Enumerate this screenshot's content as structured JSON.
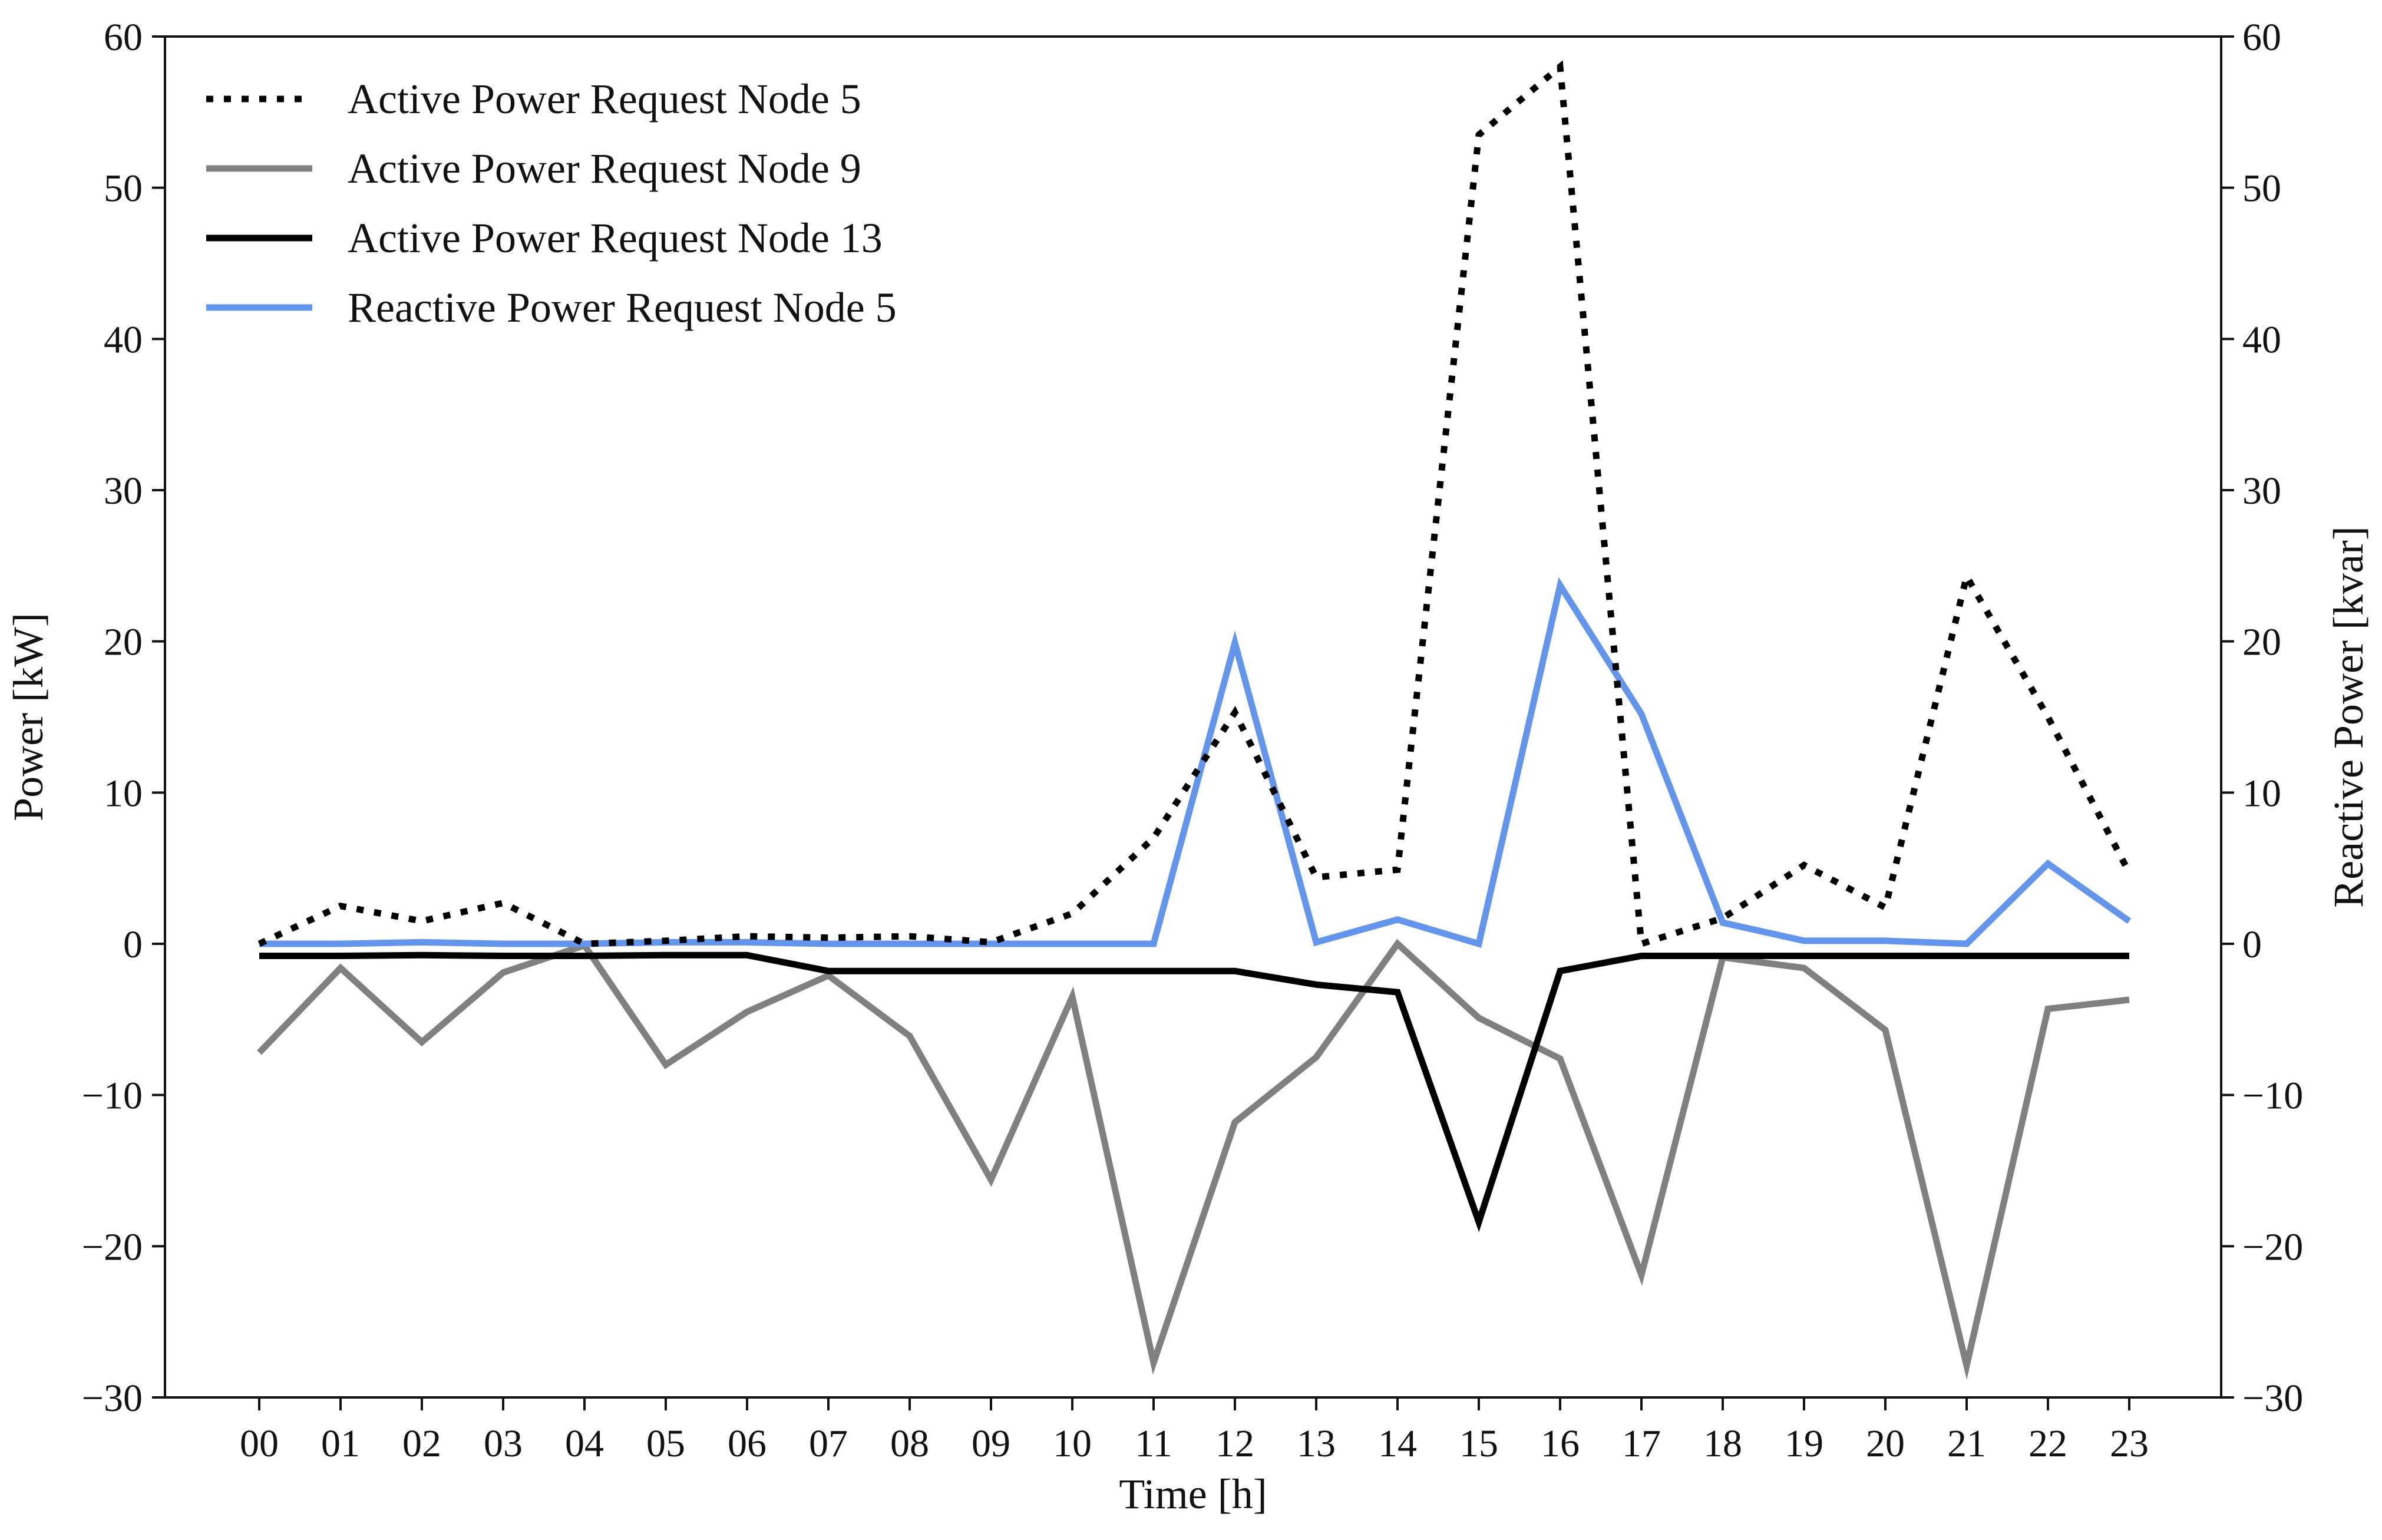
{
  "chart_data": {
    "type": "line",
    "xlabel": "Time [h]",
    "ylabel": "Power [kW]",
    "y2label": "Reactive Power [kvar]",
    "categories": [
      "00",
      "01",
      "02",
      "03",
      "04",
      "05",
      "06",
      "07",
      "08",
      "09",
      "10",
      "11",
      "12",
      "13",
      "14",
      "15",
      "16",
      "17",
      "18",
      "19",
      "20",
      "21",
      "22",
      "23"
    ],
    "ylim": [
      -30,
      60
    ],
    "y2lim": [
      -30,
      60
    ],
    "yticks": [
      -30,
      -20,
      -10,
      0,
      10,
      20,
      30,
      40,
      50,
      60
    ],
    "y2ticks": [
      -30,
      -20,
      -10,
      0,
      10,
      20,
      30,
      40,
      50,
      60
    ],
    "ytick_labels": [
      "−30",
      "−20",
      "−10",
      "0",
      "10",
      "20",
      "30",
      "40",
      "50",
      "60"
    ],
    "y2tick_labels": [
      "−30",
      "−20",
      "−10",
      "0",
      "10",
      "20",
      "30",
      "40",
      "50",
      "60"
    ],
    "grid": false,
    "legend_position": "top-left",
    "series": [
      {
        "name": "Active Power Request Node 5",
        "axis": "left",
        "color": "#000000",
        "line_style": "dotted",
        "values": [
          0.0,
          2.5,
          1.5,
          2.7,
          0.0,
          0.2,
          0.5,
          0.4,
          0.5,
          0.1,
          2.0,
          7.0,
          15.3,
          4.4,
          4.9,
          53.5,
          58.0,
          0.0,
          1.7,
          5.2,
          2.4,
          24.3,
          15.0,
          4.7
        ]
      },
      {
        "name": "Active Power Request Node 9",
        "axis": "left",
        "color": "#808080",
        "line_style": "solid",
        "values": [
          -7.2,
          -1.6,
          -6.5,
          -1.9,
          -0.1,
          -8.0,
          -4.5,
          -2.1,
          -6.1,
          -15.6,
          -3.5,
          -27.7,
          -11.8,
          -7.5,
          0.0,
          -4.9,
          -7.6,
          -21.9,
          -0.9,
          -1.6,
          -5.7,
          -27.9,
          -4.3,
          -3.7
        ]
      },
      {
        "name": "Active Power Request Node 13",
        "axis": "left",
        "color": "#000000",
        "line_style": "solid",
        "values": [
          -0.8,
          -0.8,
          -0.75,
          -0.8,
          -0.8,
          -0.75,
          -0.75,
          -1.8,
          -1.8,
          -1.8,
          -1.8,
          -1.8,
          -1.8,
          -2.7,
          -3.2,
          -18.4,
          -1.8,
          -0.8,
          -0.8,
          -0.8,
          -0.8,
          -0.8,
          -0.8,
          -0.8
        ]
      },
      {
        "name": "Reactive Power Request Node 5",
        "axis": "right",
        "color": "#6495ED",
        "line_style": "solid",
        "values": [
          0.0,
          0.0,
          0.1,
          0.0,
          0.0,
          0.1,
          0.1,
          0.0,
          0.0,
          0.0,
          0.0,
          0.0,
          19.9,
          0.1,
          1.6,
          0.0,
          23.7,
          15.2,
          1.4,
          0.2,
          0.2,
          0.0,
          5.3,
          1.5
        ]
      }
    ]
  }
}
